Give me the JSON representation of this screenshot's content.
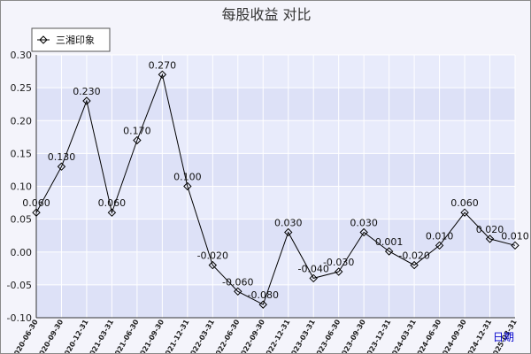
{
  "chart_data": {
    "type": "line",
    "title": "每股收益  对比",
    "xlabel": "日期",
    "ylabel": "",
    "ylim": [
      -0.1,
      0.3
    ],
    "yticks": [
      "0.30",
      "0.25",
      "0.20",
      "0.15",
      "0.10",
      "0.05",
      "0.00",
      "-0.05",
      "-0.10"
    ],
    "legend_position": "top-left",
    "grid": true,
    "categories": [
      "2020-06-30",
      "2020-09-30",
      "2020-12-31",
      "2021-03-31",
      "2021-06-30",
      "2021-09-30",
      "2021-12-31",
      "2022-03-31",
      "2022-06-30",
      "2022-09-30",
      "2022-12-31",
      "2023-03-31",
      "2023-06-30",
      "2023-09-30",
      "2023-12-31",
      "2024-03-31",
      "2024-06-30",
      "2024-09-30",
      "2024-12-31",
      "2025-03-31"
    ],
    "series": [
      {
        "name": "三湘印象",
        "color": "#000000",
        "values": [
          0.06,
          0.13,
          0.23,
          0.06,
          0.17,
          0.27,
          0.1,
          -0.02,
          -0.06,
          -0.08,
          0.03,
          -0.04,
          -0.03,
          0.03,
          0.001,
          -0.02,
          0.01,
          0.06,
          0.02,
          0.01
        ],
        "labels": [
          "0.060",
          "0.130",
          "0.230",
          "0.060",
          "0.170",
          "0.270",
          "0.100",
          "-0.020",
          "-0.060",
          "-0.080",
          "0.030",
          "-0.040",
          "-0.030",
          "0.030",
          "0.001",
          "-0.020",
          "0.010",
          "0.060",
          "0.020",
          "0.010"
        ]
      }
    ],
    "colors": {
      "plot_background": "#dde1f7",
      "band_light": "#e8ebfb",
      "grid": "#ffffff",
      "axis_name": "#0000cc"
    }
  }
}
